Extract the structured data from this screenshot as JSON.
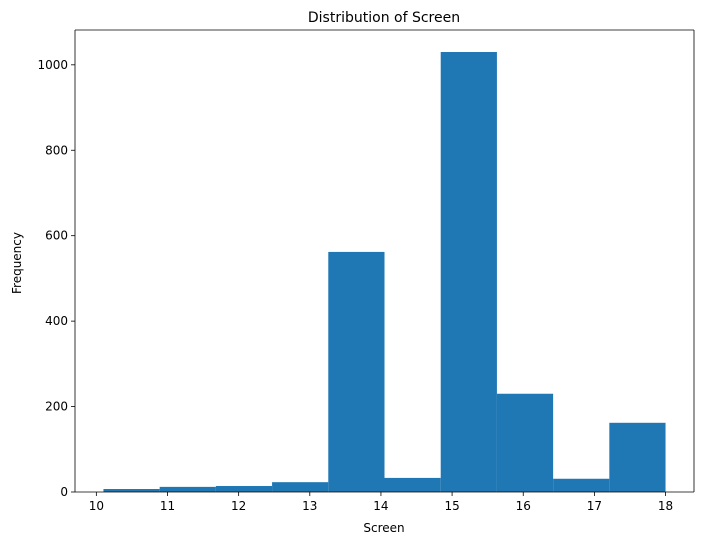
{
  "chart_data": {
    "type": "bar",
    "title": "Distribution of Screen",
    "xlabel": "Screen",
    "ylabel": "Frequency",
    "bins": [
      {
        "start": 10.1,
        "end": 10.89,
        "value": 7
      },
      {
        "start": 10.89,
        "end": 11.68,
        "value": 12
      },
      {
        "start": 11.68,
        "end": 12.47,
        "value": 14
      },
      {
        "start": 12.47,
        "end": 13.26,
        "value": 23
      },
      {
        "start": 13.26,
        "end": 14.05,
        "value": 562
      },
      {
        "start": 14.05,
        "end": 14.84,
        "value": 33
      },
      {
        "start": 14.84,
        "end": 15.63,
        "value": 1030
      },
      {
        "start": 15.63,
        "end": 16.42,
        "value": 230
      },
      {
        "start": 16.42,
        "end": 17.21,
        "value": 31
      },
      {
        "start": 17.21,
        "end": 18.0,
        "value": 162
      }
    ],
    "xlim": [
      9.7,
      18.4
    ],
    "ylim": [
      0,
      1081.5
    ],
    "xticks": [
      10,
      11,
      12,
      13,
      14,
      15,
      16,
      17,
      18
    ],
    "yticks": [
      0,
      200,
      400,
      600,
      800,
      1000
    ],
    "bar_color": "#1f77b4",
    "grid": false,
    "legend": "none"
  }
}
